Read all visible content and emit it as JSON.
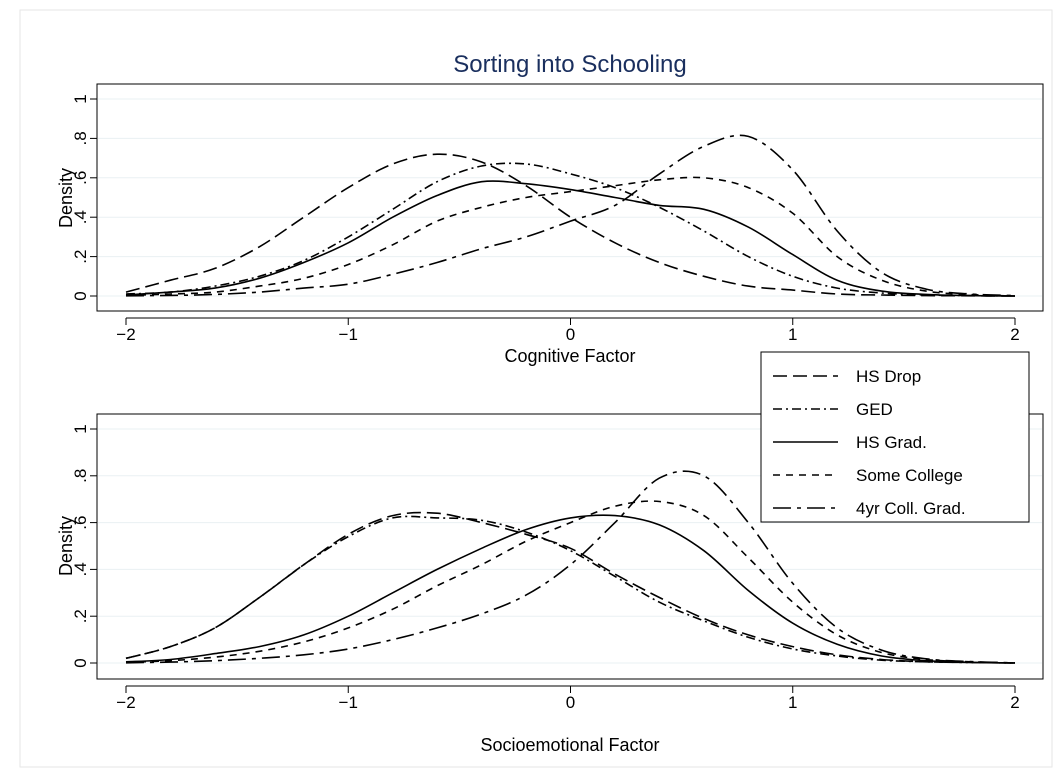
{
  "figure": {
    "title": "Sorting into Schooling",
    "title_color": "#1a2f5e"
  },
  "legend": {
    "entries": [
      {
        "label": "HS Drop",
        "dash": "14,6"
      },
      {
        "label": "GED",
        "dash": "9,4,2,4"
      },
      {
        "label": "HS Grad.",
        "dash": ""
      },
      {
        "label": "Some College",
        "dash": "7,6"
      },
      {
        "label": "4yr Coll. Grad.",
        "dash": "18,6,4,6"
      }
    ]
  },
  "chart_data": [
    {
      "type": "line",
      "title": "Sorting into Schooling",
      "xlabel": "Cognitive Factor",
      "ylabel": "Density",
      "xlim": [
        -2,
        2
      ],
      "ylim": [
        0,
        1
      ],
      "xticks": [
        "−2",
        "−1",
        "0",
        "1",
        "2"
      ],
      "yticks": [
        "0",
        ".2",
        ".4",
        ".6",
        ".8",
        "1"
      ],
      "grid": true,
      "legend_position": "right",
      "x": [
        -2.0,
        -1.8,
        -1.6,
        -1.4,
        -1.2,
        -1.0,
        -0.8,
        -0.6,
        -0.4,
        -0.2,
        0.0,
        0.2,
        0.4,
        0.6,
        0.8,
        1.0,
        1.2,
        1.4,
        1.6,
        1.8,
        2.0
      ],
      "series": [
        {
          "name": "HS Drop",
          "values": [
            0.02,
            0.08,
            0.14,
            0.25,
            0.4,
            0.55,
            0.67,
            0.72,
            0.68,
            0.56,
            0.4,
            0.27,
            0.17,
            0.1,
            0.05,
            0.03,
            0.01,
            0.005,
            0.002,
            0.001,
            0.0
          ]
        },
        {
          "name": "GED",
          "values": [
            0.01,
            0.02,
            0.05,
            0.1,
            0.18,
            0.3,
            0.44,
            0.58,
            0.66,
            0.67,
            0.62,
            0.55,
            0.45,
            0.33,
            0.2,
            0.1,
            0.04,
            0.015,
            0.005,
            0.002,
            0.0
          ]
        },
        {
          "name": "HS Grad.",
          "values": [
            0.005,
            0.02,
            0.04,
            0.09,
            0.17,
            0.27,
            0.4,
            0.51,
            0.58,
            0.57,
            0.54,
            0.5,
            0.46,
            0.44,
            0.35,
            0.21,
            0.08,
            0.025,
            0.008,
            0.002,
            0.0
          ]
        },
        {
          "name": "Some College",
          "values": [
            0.003,
            0.01,
            0.02,
            0.05,
            0.09,
            0.16,
            0.26,
            0.38,
            0.45,
            0.5,
            0.53,
            0.56,
            0.59,
            0.6,
            0.55,
            0.42,
            0.2,
            0.08,
            0.025,
            0.007,
            0.0
          ]
        },
        {
          "name": "4yr Coll. Grad.",
          "values": [
            0.001,
            0.003,
            0.008,
            0.02,
            0.04,
            0.06,
            0.11,
            0.17,
            0.24,
            0.3,
            0.38,
            0.46,
            0.62,
            0.76,
            0.81,
            0.64,
            0.33,
            0.12,
            0.035,
            0.01,
            0.002
          ]
        }
      ]
    },
    {
      "type": "line",
      "title": "",
      "xlabel": "Socioemotional Factor",
      "ylabel": "Density",
      "xlim": [
        -2,
        2
      ],
      "ylim": [
        0,
        1
      ],
      "xticks": [
        "−2",
        "−1",
        "0",
        "1",
        "2"
      ],
      "yticks": [
        "0",
        ".2",
        ".4",
        ".6",
        ".8",
        "1"
      ],
      "grid": true,
      "x": [
        -2.0,
        -1.8,
        -1.6,
        -1.4,
        -1.2,
        -1.0,
        -0.8,
        -0.6,
        -0.4,
        -0.2,
        0.0,
        0.2,
        0.4,
        0.6,
        0.8,
        1.0,
        1.2,
        1.4,
        1.6,
        1.8,
        2.0
      ],
      "series": [
        {
          "name": "HS Drop",
          "values": [
            0.02,
            0.07,
            0.15,
            0.28,
            0.42,
            0.55,
            0.63,
            0.64,
            0.6,
            0.55,
            0.49,
            0.38,
            0.28,
            0.19,
            0.12,
            0.07,
            0.035,
            0.015,
            0.005,
            0.002,
            0.0
          ]
        },
        {
          "name": "GED",
          "values": [
            0.02,
            0.07,
            0.15,
            0.28,
            0.42,
            0.54,
            0.62,
            0.62,
            0.61,
            0.56,
            0.48,
            0.37,
            0.26,
            0.18,
            0.11,
            0.06,
            0.03,
            0.012,
            0.005,
            0.002,
            0.0
          ]
        },
        {
          "name": "HS Grad.",
          "values": [
            0.005,
            0.015,
            0.04,
            0.07,
            0.12,
            0.2,
            0.3,
            0.4,
            0.49,
            0.57,
            0.62,
            0.63,
            0.59,
            0.48,
            0.31,
            0.17,
            0.08,
            0.03,
            0.01,
            0.003,
            0.0
          ]
        },
        {
          "name": "Some College",
          "values": [
            0.003,
            0.01,
            0.025,
            0.05,
            0.09,
            0.15,
            0.23,
            0.33,
            0.42,
            0.52,
            0.6,
            0.67,
            0.69,
            0.63,
            0.45,
            0.26,
            0.12,
            0.045,
            0.015,
            0.005,
            0.0
          ]
        },
        {
          "name": "4yr Coll. Grad.",
          "values": [
            0.001,
            0.004,
            0.01,
            0.02,
            0.035,
            0.06,
            0.1,
            0.15,
            0.21,
            0.29,
            0.42,
            0.6,
            0.79,
            0.8,
            0.6,
            0.34,
            0.15,
            0.055,
            0.018,
            0.006,
            0.001
          ]
        }
      ]
    }
  ]
}
